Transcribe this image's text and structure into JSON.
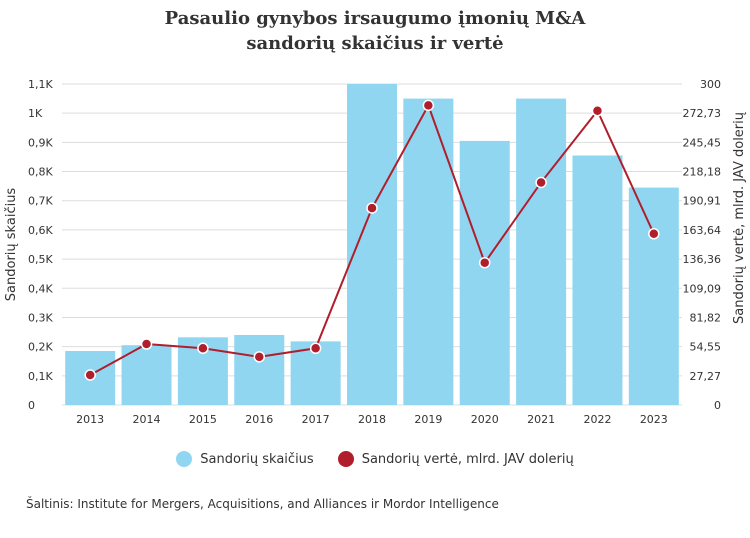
{
  "title_line1": "Pasaulio gynybos irsaugumo įmonių M&A",
  "title_line2": "sandorių skaičius ir vertė",
  "source": "Šaltinis: Institute for Mergers, Acquisitions, and Alliances ir Mordor Intelligence",
  "colors": {
    "bar": "#90d6f1",
    "line": "#b01e2c",
    "grid": "#dddddd"
  },
  "chart_data": {
    "type": "bar+line",
    "categories": [
      "2013",
      "2014",
      "2015",
      "2016",
      "2017",
      "2018",
      "2019",
      "2020",
      "2021",
      "2022",
      "2023"
    ],
    "series": [
      {
        "name": "Sandorių skaičius",
        "type": "bar",
        "axis": "left",
        "values": [
          185,
          205,
          232,
          240,
          218,
          1100,
          1050,
          905,
          1050,
          855,
          745
        ]
      },
      {
        "name": "Sandorių vertė, mlrd. JAV dolerių",
        "type": "line",
        "axis": "right",
        "values": [
          28,
          57,
          53,
          45,
          53,
          184,
          280,
          133,
          208,
          275,
          160
        ]
      }
    ],
    "ylabel_left": "Sandorių skaičius",
    "ylabel_right": "Sandorių vertė, mlrd. JAV dolerių",
    "yticks_left": [
      "0",
      "0,1K",
      "0,2K",
      "0,3K",
      "0,4K",
      "0,5K",
      "0,6K",
      "0,7K",
      "0,8K",
      "0,9K",
      "1K",
      "1,1K"
    ],
    "yticks_right": [
      "0",
      "27,27",
      "54,55",
      "81,82",
      "109,09",
      "136,36",
      "163,64",
      "190,91",
      "218,18",
      "245,45",
      "272,73",
      "300"
    ],
    "ylim_left": [
      0,
      1100
    ],
    "ylim_right": [
      0,
      300
    ],
    "grid": true,
    "legend": "bottom-center"
  }
}
